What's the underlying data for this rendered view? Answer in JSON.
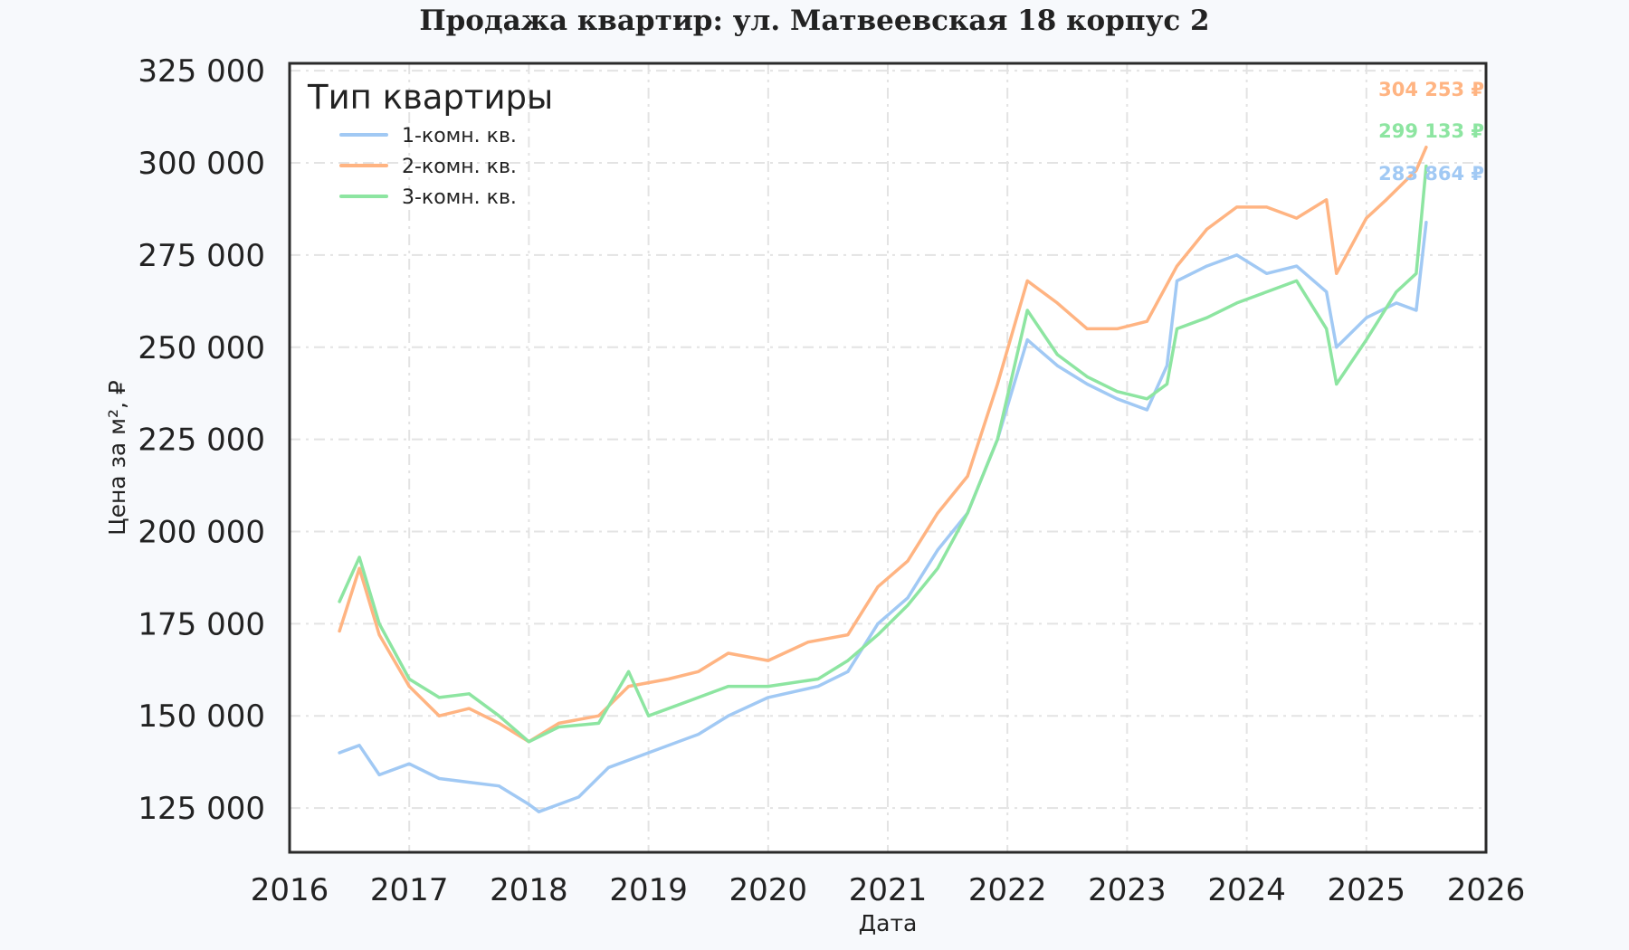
{
  "chart_data": {
    "type": "line",
    "title": "Продажа квартир: ул. Матвеевская 18 корпус 2",
    "xlabel": "Дата",
    "ylabel": "Цена за м², ₽",
    "xlim": [
      "2016",
      "2026"
    ],
    "ylim": [
      113000,
      327000
    ],
    "x_ticks": [
      "2016",
      "2017",
      "2018",
      "2019",
      "2020",
      "2021",
      "2022",
      "2023",
      "2024",
      "2025",
      "2026"
    ],
    "y_ticks": [
      125000,
      150000,
      175000,
      200000,
      225000,
      250000,
      275000,
      300000,
      325000
    ],
    "y_tick_labels": [
      "125 000",
      "150 000",
      "175 000",
      "200 000",
      "225 000",
      "250 000",
      "275 000",
      "300 000",
      "325 000"
    ],
    "grid": true,
    "legend": {
      "title": "Тип квартиры",
      "placement": "top-left"
    },
    "series": [
      {
        "name": "1-комн. кв.",
        "color": "#a1c9f4",
        "end_label": "283 864 ₽",
        "points": [
          [
            "2016-06",
            140000
          ],
          [
            "2016-08",
            142000
          ],
          [
            "2016-10",
            134000
          ],
          [
            "2017-01",
            137000
          ],
          [
            "2017-04",
            133000
          ],
          [
            "2017-07",
            132000
          ],
          [
            "2017-10",
            131000
          ],
          [
            "2018-01",
            126000
          ],
          [
            "2018-02",
            124000
          ],
          [
            "2018-06",
            128000
          ],
          [
            "2018-09",
            136000
          ],
          [
            "2019-01",
            140000
          ],
          [
            "2019-06",
            145000
          ],
          [
            "2019-09",
            150000
          ],
          [
            "2020-01",
            155000
          ],
          [
            "2020-06",
            158000
          ],
          [
            "2020-09",
            162000
          ],
          [
            "2020-12",
            175000
          ],
          [
            "2021-03",
            182000
          ],
          [
            "2021-06",
            195000
          ],
          [
            "2021-09",
            205000
          ],
          [
            "2021-12",
            225000
          ],
          [
            "2022-03",
            252000
          ],
          [
            "2022-06",
            245000
          ],
          [
            "2022-09",
            240000
          ],
          [
            "2022-12",
            236000
          ],
          [
            "2023-03",
            233000
          ],
          [
            "2023-05",
            245000
          ],
          [
            "2023-06",
            268000
          ],
          [
            "2023-09",
            272000
          ],
          [
            "2023-12",
            275000
          ],
          [
            "2024-03",
            270000
          ],
          [
            "2024-06",
            272000
          ],
          [
            "2024-09",
            265000
          ],
          [
            "2024-10",
            250000
          ],
          [
            "2025-01",
            258000
          ],
          [
            "2025-04",
            262000
          ],
          [
            "2025-06",
            260000
          ],
          [
            "2025-07",
            283864
          ]
        ]
      },
      {
        "name": "2-комн. кв.",
        "color": "#ffb482",
        "end_label": "304 253 ₽",
        "points": [
          [
            "2016-06",
            173000
          ],
          [
            "2016-08",
            190000
          ],
          [
            "2016-10",
            172000
          ],
          [
            "2017-01",
            158000
          ],
          [
            "2017-04",
            150000
          ],
          [
            "2017-07",
            152000
          ],
          [
            "2017-10",
            148000
          ],
          [
            "2018-01",
            143000
          ],
          [
            "2018-04",
            148000
          ],
          [
            "2018-08",
            150000
          ],
          [
            "2018-11",
            158000
          ],
          [
            "2019-03",
            160000
          ],
          [
            "2019-06",
            162000
          ],
          [
            "2019-09",
            167000
          ],
          [
            "2020-01",
            165000
          ],
          [
            "2020-05",
            170000
          ],
          [
            "2020-09",
            172000
          ],
          [
            "2020-12",
            185000
          ],
          [
            "2021-03",
            192000
          ],
          [
            "2021-06",
            205000
          ],
          [
            "2021-09",
            215000
          ],
          [
            "2021-12",
            240000
          ],
          [
            "2022-03",
            268000
          ],
          [
            "2022-06",
            262000
          ],
          [
            "2022-09",
            255000
          ],
          [
            "2022-12",
            255000
          ],
          [
            "2023-03",
            257000
          ],
          [
            "2023-06",
            272000
          ],
          [
            "2023-09",
            282000
          ],
          [
            "2023-12",
            288000
          ],
          [
            "2024-03",
            288000
          ],
          [
            "2024-06",
            285000
          ],
          [
            "2024-09",
            290000
          ],
          [
            "2024-10",
            270000
          ],
          [
            "2025-01",
            285000
          ],
          [
            "2025-03",
            290000
          ],
          [
            "2025-06",
            298000
          ],
          [
            "2025-07",
            304253
          ]
        ]
      },
      {
        "name": "3-комн. кв.",
        "color": "#8de5a1",
        "end_label": "299 133 ₽",
        "points": [
          [
            "2016-06",
            181000
          ],
          [
            "2016-08",
            193000
          ],
          [
            "2016-10",
            175000
          ],
          [
            "2017-01",
            160000
          ],
          [
            "2017-04",
            155000
          ],
          [
            "2017-07",
            156000
          ],
          [
            "2017-10",
            150000
          ],
          [
            "2018-01",
            143000
          ],
          [
            "2018-04",
            147000
          ],
          [
            "2018-08",
            148000
          ],
          [
            "2018-11",
            162000
          ],
          [
            "2019-01",
            150000
          ],
          [
            "2019-06",
            155000
          ],
          [
            "2019-09",
            158000
          ],
          [
            "2020-01",
            158000
          ],
          [
            "2020-06",
            160000
          ],
          [
            "2020-09",
            165000
          ],
          [
            "2020-12",
            172000
          ],
          [
            "2021-03",
            180000
          ],
          [
            "2021-06",
            190000
          ],
          [
            "2021-09",
            205000
          ],
          [
            "2021-12",
            225000
          ],
          [
            "2022-03",
            260000
          ],
          [
            "2022-06",
            248000
          ],
          [
            "2022-09",
            242000
          ],
          [
            "2022-12",
            238000
          ],
          [
            "2023-03",
            236000
          ],
          [
            "2023-05",
            240000
          ],
          [
            "2023-06",
            255000
          ],
          [
            "2023-09",
            258000
          ],
          [
            "2023-12",
            262000
          ],
          [
            "2024-03",
            265000
          ],
          [
            "2024-06",
            268000
          ],
          [
            "2024-09",
            255000
          ],
          [
            "2024-10",
            240000
          ],
          [
            "2025-01",
            252000
          ],
          [
            "2025-04",
            265000
          ],
          [
            "2025-06",
            270000
          ],
          [
            "2025-07",
            299133
          ]
        ]
      }
    ]
  }
}
